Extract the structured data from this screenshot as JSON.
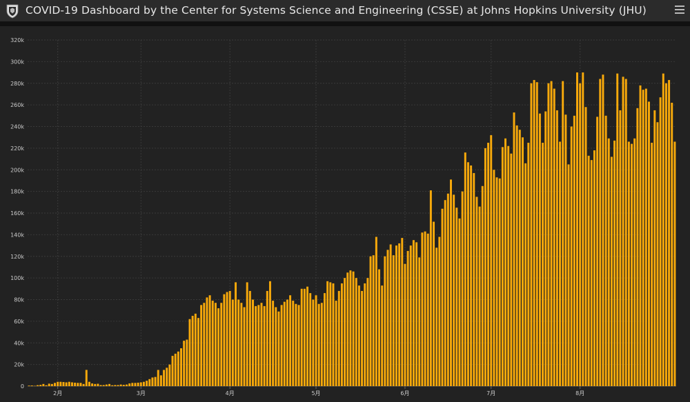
{
  "header": {
    "title": "COVID-19 Dashboard by the Center for Systems Science and Engineering (CSSE) at Johns Hopkins University (JHU)",
    "logo_icon": "jhu-shield-icon",
    "menu_icon": "hamburger-menu-icon"
  },
  "colors": {
    "bar": "#f7a90b",
    "background": "#222222",
    "grid": "#3a3a3a",
    "text": "#cccccc"
  },
  "chart_data": {
    "type": "bar",
    "title": "",
    "xlabel": "",
    "ylabel": "",
    "ylim": [
      0,
      320000
    ],
    "yticks": [
      0,
      20000,
      40000,
      60000,
      80000,
      100000,
      120000,
      140000,
      160000,
      180000,
      200000,
      220000,
      240000,
      260000,
      280000,
      300000,
      320000
    ],
    "yticklabels": [
      "0",
      "20k",
      "40k",
      "60k",
      "80k",
      "100k",
      "120k",
      "140k",
      "160k",
      "180k",
      "200k",
      "220k",
      "240k",
      "260k",
      "280k",
      "300k",
      "320k"
    ],
    "xticks": [
      {
        "label": "2月",
        "index": 10
      },
      {
        "label": "3月",
        "index": 39
      },
      {
        "label": "4月",
        "index": 70
      },
      {
        "label": "5月",
        "index": 100
      },
      {
        "label": "6月",
        "index": 131
      },
      {
        "label": "7月",
        "index": 161
      },
      {
        "label": "8月",
        "index": 192
      }
    ],
    "grid": true,
    "values": [
      500,
      600,
      300,
      900,
      1200,
      2000,
      800,
      2300,
      2000,
      3000,
      4000,
      4000,
      3800,
      3500,
      4000,
      3500,
      3200,
      3000,
      3000,
      2000,
      15000,
      4000,
      2500,
      2000,
      2200,
      1000,
      1000,
      1500,
      2000,
      800,
      1000,
      1000,
      1500,
      1200,
      1500,
      2500,
      3000,
      3000,
      3200,
      3500,
      4000,
      5000,
      6500,
      8000,
      8500,
      15000,
      10000,
      15000,
      17000,
      20000,
      28000,
      30000,
      32000,
      35000,
      42000,
      43000,
      62000,
      65000,
      67000,
      63000,
      75000,
      77000,
      82000,
      84000,
      79000,
      77000,
      72000,
      77000,
      85000,
      87000,
      88000,
      80000,
      96000,
      80000,
      77000,
      73000,
      96000,
      88000,
      80000,
      74000,
      75000,
      77000,
      74000,
      88000,
      97000,
      79000,
      73000,
      69000,
      75000,
      78000,
      80000,
      84000,
      79000,
      76000,
      75000,
      90000,
      90000,
      92000,
      86000,
      80000,
      84000,
      76000,
      77000,
      86000,
      97000,
      96000,
      95000,
      79000,
      88000,
      95000,
      100000,
      105000,
      107000,
      106000,
      100000,
      93000,
      88000,
      95000,
      100000,
      120000,
      121000,
      138000,
      108000,
      93000,
      120000,
      126000,
      131000,
      121000,
      130000,
      132000,
      137000,
      113000,
      125000,
      130000,
      135000,
      133000,
      119000,
      142000,
      143000,
      141000,
      181000,
      152000,
      128000,
      138000,
      164000,
      172000,
      178000,
      191000,
      177000,
      165000,
      155000,
      180000,
      216000,
      207000,
      204000,
      197000,
      175000,
      166000,
      185000,
      220000,
      225000,
      232000,
      200000,
      193000,
      192000,
      221000,
      229000,
      222000,
      215000,
      253000,
      241000,
      237000,
      230000,
      206000,
      225000,
      280000,
      283000,
      281000,
      252000,
      225000,
      254000,
      280000,
      282000,
      275000,
      255000,
      226000,
      282000,
      251000,
      205000,
      240000,
      250000,
      290000,
      280000,
      290000,
      258000,
      213000,
      209000,
      218000,
      249000,
      284000,
      288000,
      250000,
      229000,
      212000,
      227000,
      289000,
      255000,
      286000,
      284000,
      226000,
      224000,
      229000,
      257000,
      278000,
      274000,
      275000,
      263000,
      225000,
      255000,
      244000,
      267000,
      289000,
      280000,
      283000,
      262000,
      226000
    ]
  }
}
